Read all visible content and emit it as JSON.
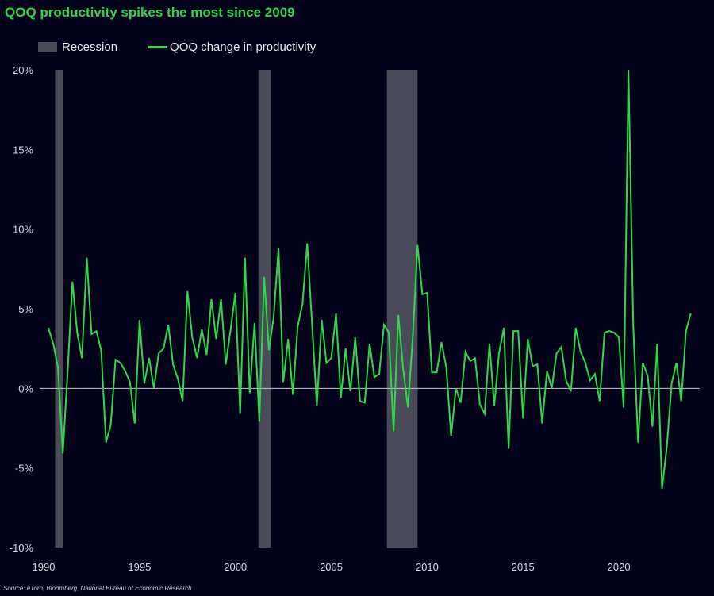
{
  "chart_data": {
    "type": "line",
    "title": "QOQ productivity spikes the most since 2009",
    "source": "Source: eToro, Bloomberg, National Bureau of Economic Research",
    "xlabel": "",
    "ylabel": "",
    "xlim": [
      1990,
      2024.2
    ],
    "ylim": [
      -10,
      20
    ],
    "grid": false,
    "legend_placement": "top-left",
    "legend": [
      "Recession",
      "QOQ change in productivity"
    ],
    "x_ticks": [
      1990,
      1995,
      2000,
      2005,
      2010,
      2015,
      2020
    ],
    "y_ticks": [
      {
        "value": 20,
        "label": "20%"
      },
      {
        "value": 15,
        "label": "15%"
      },
      {
        "value": 10,
        "label": "10%"
      },
      {
        "value": 5,
        "label": "5%"
      },
      {
        "value": 0,
        "label": "0%"
      },
      {
        "value": -5,
        "label": "-5%"
      },
      {
        "value": -10,
        "label": "-10%"
      }
    ],
    "recessions": [
      [
        1990.6,
        1991.0
      ],
      [
        2001.2,
        2001.85
      ],
      [
        2007.9,
        2009.5
      ]
    ],
    "series": [
      {
        "name": "QOQ change in productivity",
        "x_start": 1990.25,
        "x_step": 0.25,
        "values": [
          3.8,
          2.8,
          1.3,
          -4.1,
          1.0,
          6.7,
          3.5,
          1.9,
          8.2,
          3.4,
          3.6,
          2.4,
          -3.4,
          -2.3,
          1.8,
          1.6,
          1.1,
          0.4,
          -2.2,
          4.3,
          0.3,
          1.9,
          0.0,
          2.2,
          2.5,
          4.0,
          1.5,
          0.6,
          -0.8,
          6.1,
          3.2,
          1.9,
          3.7,
          2.1,
          5.6,
          3.1,
          5.6,
          1.5,
          3.7,
          6.0,
          -1.6,
          8.2,
          -0.3,
          4.1,
          -2.1,
          7.0,
          2.4,
          4.5,
          8.8,
          0.4,
          3.1,
          -0.4,
          3.9,
          5.3,
          9.1,
          4.0,
          -1.1,
          4.3,
          1.6,
          1.9,
          4.7,
          -0.6,
          2.5,
          -0.2,
          3.2,
          -0.8,
          -0.9,
          2.8,
          0.7,
          0.9,
          4.0,
          3.5,
          -2.7,
          4.6,
          1.2,
          -1.2,
          3.2,
          9.0,
          5.9,
          6.0,
          1.0,
          1.0,
          2.9,
          1.3,
          -3.0,
          0.0,
          -0.9,
          2.3,
          1.7,
          1.9,
          -1.0,
          -1.6,
          2.8,
          -1.1,
          2.2,
          3.8,
          -3.8,
          3.6,
          3.6,
          -1.9,
          3.1,
          1.4,
          1.5,
          -2.2,
          1.1,
          0.0,
          2.2,
          2.6,
          0.5,
          -0.2,
          3.8,
          2.3,
          1.6,
          0.5,
          0.9,
          -0.8,
          3.5,
          3.6,
          3.5,
          3.2,
          -1.2,
          20.0,
          4.0,
          -3.4,
          1.6,
          0.8,
          -2.4,
          2.8,
          -6.3,
          -3.7,
          0.3,
          1.6,
          -0.8,
          3.6,
          4.7
        ]
      }
    ]
  },
  "colors": {
    "background": "#02021a",
    "line": "#2fd84a",
    "recession": "#4a4a58",
    "zero_line": "#c8c8d0"
  }
}
